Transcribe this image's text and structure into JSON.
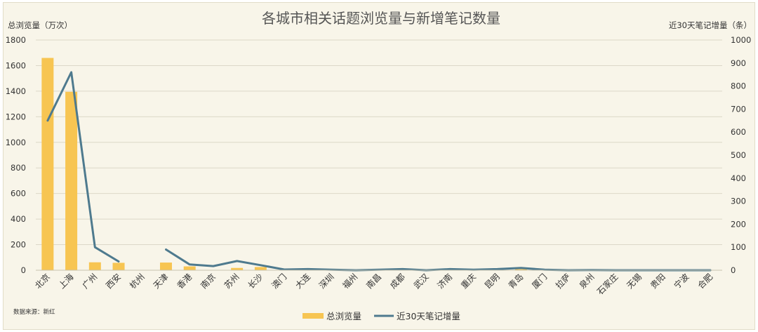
{
  "chart_data": {
    "type": "bar+line",
    "title": "各城市相关话题浏览量与新增笔记数量",
    "ylabel_left": "总浏览量（万次）",
    "ylabel_right": "近30天笔记增量（条）",
    "source": "数据来源：新红",
    "categories": [
      "北京",
      "上海",
      "广州",
      "西安",
      "杭州",
      "天津",
      "香港",
      "南京",
      "苏州",
      "长沙",
      "澳门",
      "大连",
      "深圳",
      "福州",
      "南昌",
      "成都",
      "武汉",
      "济南",
      "重庆",
      "昆明",
      "青岛",
      "厦门",
      "拉萨",
      "泉州",
      "石家庄",
      "无锡",
      "贵阳",
      "宁波",
      "合肥"
    ],
    "ylim_left": [
      0,
      1800
    ],
    "yticks_left": [
      0,
      200,
      400,
      600,
      800,
      1000,
      1200,
      1400,
      1600,
      1800
    ],
    "ylim_right": [
      0,
      1000
    ],
    "yticks_right": [
      0,
      100,
      200,
      300,
      400,
      500,
      600,
      700,
      800,
      900,
      1000
    ],
    "series": [
      {
        "name": "总浏览量",
        "type": "bar",
        "axis": "left",
        "color": "#f7c552",
        "values": [
          1660,
          1395,
          62,
          58,
          0,
          60,
          30,
          0,
          18,
          25,
          0,
          8,
          5,
          3,
          4,
          8,
          3,
          5,
          3,
          4,
          8,
          2,
          2,
          3,
          1,
          1,
          1,
          1,
          1
        ]
      },
      {
        "name": "近30天笔记增量",
        "type": "line",
        "axis": "right",
        "color": "#4e7a8e",
        "values": [
          650,
          860,
          100,
          38,
          null,
          90,
          25,
          18,
          40,
          22,
          3,
          5,
          2,
          0,
          2,
          5,
          0,
          5,
          2,
          5,
          10,
          2,
          0,
          1,
          0,
          0,
          0,
          0,
          0
        ]
      }
    ],
    "grid": true,
    "legend_position": "bottom-center"
  }
}
